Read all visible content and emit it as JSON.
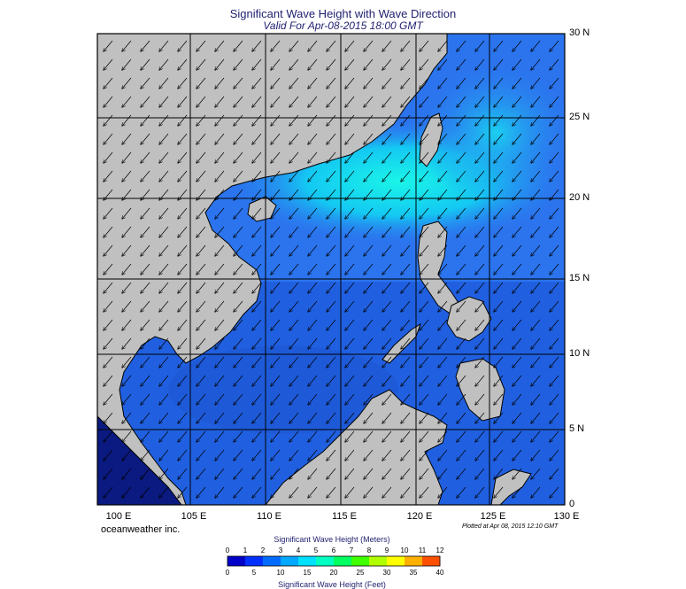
{
  "header": {
    "title": "Significant Wave Height with Wave Direction",
    "subtitle": "Valid For Apr-08-2015 18:00 GMT"
  },
  "map": {
    "lat_labels": [
      "30 N",
      "25 N",
      "20 N",
      "15 N",
      "10 N",
      "5 N",
      "0"
    ],
    "lon_labels": [
      "100 E",
      "105 E",
      "110 E",
      "115 E",
      "120 E",
      "125 E",
      "130 E"
    ],
    "colors": {
      "land": "#c0c0c0",
      "sea_low": "#1f4fd6",
      "sea_mid": "#2b7cf0",
      "sea_high": "#19e0f0",
      "grid": "#000000"
    },
    "arrow_direction": "toward southwest"
  },
  "footer": {
    "brand": "oceanweather inc.",
    "plotted": "Plotted at Apr 08, 2015 12:10 GMT"
  },
  "legend": {
    "title_m": "Significant Wave Height (Meters)",
    "title_ft": "Significant Wave Height (Feet)",
    "meters": [
      "0",
      "1",
      "2",
      "3",
      "4",
      "5",
      "6",
      "7",
      "8",
      "9",
      "10",
      "11",
      "12"
    ],
    "feet": [
      "0",
      "5",
      "10",
      "15",
      "20",
      "25",
      "30",
      "35",
      "40"
    ],
    "colors": [
      "#0000c8",
      "#0030ff",
      "#006cff",
      "#00a8ff",
      "#00e0ff",
      "#00ffc0",
      "#00ff60",
      "#40ff00",
      "#b0ff00",
      "#ffff00",
      "#ffb000",
      "#ff5000"
    ]
  }
}
